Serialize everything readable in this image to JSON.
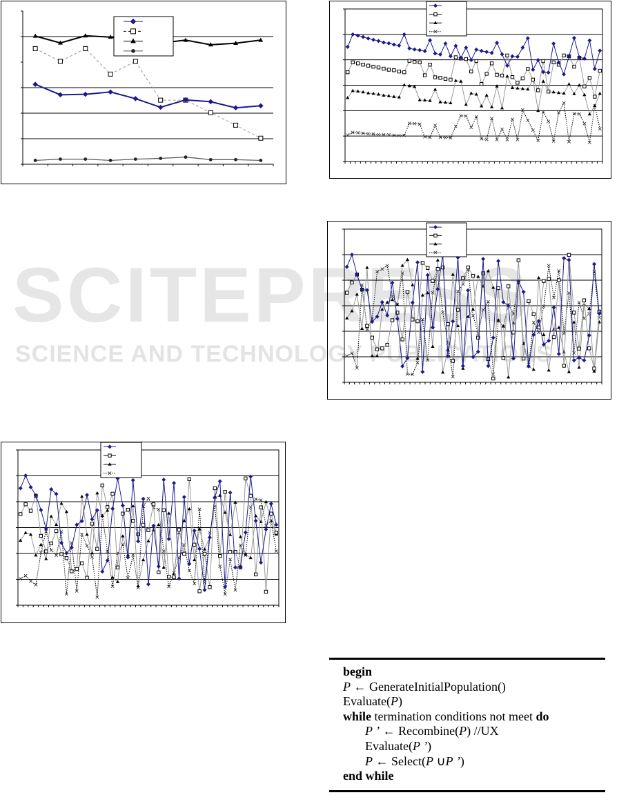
{
  "watermark": {
    "title": "SCITEPRESS",
    "subtitle": "SCIENCE AND TECHNOLOGY PUBLICATIONS"
  },
  "chart_data": [
    {
      "type": "line",
      "ylim": [
        0,
        6
      ],
      "gridlines": [
        1,
        2,
        3,
        5
      ],
      "grid": true,
      "legend": "top-center",
      "series": [
        {
          "marker": "diamond",
          "color": "#1a1a8c",
          "line": "solid-bold",
          "values": [
            3.13,
            2.72,
            2.74,
            2.83,
            2.57,
            2.23,
            2.52,
            2.45,
            2.21,
            2.29
          ]
        },
        {
          "marker": "square",
          "color": "#999999",
          "line": "dashed",
          "values": [
            4.53,
            4.03,
            4.53,
            3.53,
            4.03,
            2.51,
            2.51,
            2.02,
            1.53,
            1.02
          ]
        },
        {
          "marker": "triangle",
          "color": "#000000",
          "line": "solid-bold",
          "values": [
            5.02,
            4.75,
            5.03,
            4.98,
            4.8,
            4.75,
            4.86,
            4.68,
            4.74,
            4.86
          ]
        },
        {
          "marker": "dot",
          "color": "#555555",
          "line": "solid",
          "values": [
            0.15,
            0.2,
            0.2,
            0.15,
            0.2,
            0.23,
            0.28,
            0.18,
            0.18,
            0.15
          ]
        }
      ]
    },
    {
      "type": "line",
      "ylim": [
        0,
        6
      ],
      "gridlines": [
        1,
        2,
        3,
        4,
        5
      ],
      "grid": true,
      "legend": "top-center",
      "series": [
        {
          "marker": "diamond",
          "color": "#1a1a8c",
          "line": "solid",
          "values": [
            4.51,
            5.0,
            4.95,
            4.9,
            4.84,
            4.79,
            4.74,
            4.68,
            4.65,
            4.6,
            4.56,
            5.0,
            4.45,
            4.41,
            4.38,
            4.34,
            4.77,
            4.25,
            4.21,
            4.64,
            4.14,
            4.55,
            4.08,
            4.48,
            3.99,
            4.4,
            4.35,
            4.31,
            4.27,
            4.67,
            4.22,
            3.77,
            4.14,
            4.12,
            4.48,
            4.85,
            3.61,
            3.99,
            3.52,
            3.5,
            4.64,
            3.9,
            3.43,
            4.14,
            4.86,
            4.1,
            4.05,
            4.76,
            3.64,
            4.36
          ]
        },
        {
          "marker": "square",
          "color": "#999999",
          "line": "solid",
          "values": [
            3.51,
            3.9,
            3.86,
            3.81,
            3.77,
            3.73,
            3.7,
            3.65,
            3.61,
            3.59,
            3.54,
            3.51,
            3.96,
            3.92,
            3.9,
            3.39,
            3.81,
            3.31,
            3.29,
            3.25,
            3.22,
            4.1,
            4.05,
            4.03,
            3.54,
            3.95,
            3.05,
            3.45,
            3.86,
            3.41,
            3.38,
            4.17,
            3.32,
            3.1,
            3.27,
            3.64,
            3.22,
            2.8,
            3.95,
            2.75,
            3.9,
            3.81,
            4.17,
            4.14,
            3.73,
            4.08,
            2.95,
            3.29,
            2.55,
            3.57
          ]
        },
        {
          "marker": "triangle",
          "color": "#999999",
          "line": "solid",
          "values": [
            2.5,
            2.78,
            2.76,
            2.73,
            2.69,
            2.67,
            2.64,
            2.6,
            2.58,
            2.55,
            2.53,
            3.01,
            2.97,
            2.94,
            2.42,
            2.41,
            2.39,
            2.83,
            2.34,
            2.32,
            2.3,
            3.18,
            3.15,
            2.24,
            2.68,
            2.64,
            2.18,
            2.6,
            2.14,
            2.96,
            2.1,
            3.35,
            2.9,
            2.88,
            2.86,
            2.84,
            3.22,
            2.0,
            3.15,
            2.75,
            2.73,
            2.7,
            2.68,
            3.04,
            2.66,
            3.0,
            2.62,
            1.86,
            2.19,
            2.67
          ]
        },
        {
          "marker": "x",
          "color": "#000000",
          "line": "dotted",
          "values": [
            1.04,
            1.14,
            1.13,
            1.11,
            1.09,
            1.08,
            1.06,
            1.05,
            1.05,
            1.03,
            1.02,
            1.03,
            1.5,
            1.49,
            1.47,
            0.97,
            0.95,
            1.42,
            0.95,
            0.94,
            0.93,
            1.38,
            1.8,
            1.79,
            1.34,
            1.76,
            0.89,
            0.87,
            1.69,
            0.86,
            1.27,
            0.86,
            1.66,
            0.86,
            2.03,
            1.62,
            1.23,
            0.82,
            1.95,
            1.58,
            0.8,
            1.92,
            2.3,
            0.78,
            1.88,
            1.87,
            1.49,
            0.75,
            2.2,
            1.29
          ]
        }
      ]
    },
    {
      "type": "line",
      "ylim": [
        0,
        6
      ],
      "gridlines": [
        1,
        2,
        3,
        4,
        5
      ],
      "grid": true,
      "legend": "top-center",
      "series": [
        {
          "marker": "diamond",
          "color": "#1a1a8c",
          "line": "solid",
          "values": [
            4.52,
            5.0,
            4.22,
            3.63,
            3.61,
            2.37,
            2.57,
            3.14,
            2.62,
            3.9,
            2.49,
            0.63,
            0.95,
            3.12,
            4.7,
            0.41,
            4.2,
            2.15,
            3.65,
            5.0,
            1.02,
            2.39,
            4.89,
            0.64,
            3.6,
            0.99,
            1.2,
            4.83,
            0.64,
            1.75,
            4.75,
            3.14,
            3.0,
            0.93,
            3.96,
            3.54,
            0.63,
            1.86,
            2.4,
            1.48,
            1.63,
            2.93,
            1.11,
            4.86,
            4.79,
            0.86,
            0.97,
            0.86,
            1.84,
            4.63,
            2.69
          ]
        },
        {
          "marker": "square",
          "color": "#999999",
          "line": "solid",
          "values": [
            3.51,
            3.91,
            4.22,
            3.63,
            2.21,
            1.75,
            1.29,
            1.33,
            1.47,
            2.43,
            2.73,
            1.68,
            3.54,
            2.46,
            2.39,
            4.68,
            4.48,
            3.97,
            4.44,
            4.5,
            2.28,
            0.84,
            2.84,
            4.08,
            4.5,
            4.17,
            1.75,
            4.27,
            0.91,
            0.15,
            3.69,
            0.95,
            3.76,
            1.95,
            4.78,
            0.93,
            3.18,
            2.67,
            2.15,
            3.97,
            4.05,
            1.77,
            4.0,
            0.65,
            4.99,
            2.73,
            1.32,
            3.21,
            1.33,
            0.54,
            2.77
          ]
        },
        {
          "marker": "triangle",
          "color": "#999999",
          "line": "solid",
          "values": [
            2.51,
            2.79,
            3.44,
            2.1,
            4.49,
            1.03,
            1.03,
            2.85,
            3.13,
            3.23,
            3.04,
            4.57,
            4.8,
            3.81,
            0.93,
            3.41,
            3.5,
            1.4,
            4.78,
            0.39,
            1.27,
            4.22,
            2.21,
            0.54,
            2.57,
            2.85,
            4.14,
            3.76,
            4.36,
            3.71,
            2.43,
            2.2,
            0.2,
            2.32,
            3.9,
            1.51,
            0.63,
            0.5,
            4.09,
            1.86,
            0.47,
            2.07,
            2.14,
            1.18,
            0.41,
            2.35,
            0.58,
            3.05,
            2.88,
            0.43,
            2.36
          ]
        },
        {
          "marker": "x",
          "color": "#000000",
          "line": "dotted",
          "values": [
            1.03,
            1.14,
            0.56,
            3.81,
            2.07,
            2.48,
            4.33,
            4.44,
            4.57,
            3.36,
            3.05,
            4.28,
            0.32,
            0.31,
            0.77,
            2.46,
            0.87,
            3.51,
            4.44,
            2.74,
            1.54,
            0.22,
            3.56,
            3.84,
            4.41,
            2.61,
            1.92,
            2.84,
            3.16,
            0.32,
            2.41,
            2.19,
            3.05,
            2.68,
            3.89,
            1.53,
            0.7,
            2.35,
            1.95,
            2.97,
            4.57,
            3.32,
            4.37,
            1.91,
            3.5,
            1.15,
            3.13,
            2.5,
            2.69,
            4.33,
            2.53
          ]
        }
      ]
    },
    {
      "type": "line",
      "ylim": [
        0,
        6
      ],
      "gridlines": [
        1,
        2,
        3,
        4,
        5
      ],
      "grid": true,
      "legend": "top-center",
      "series": [
        {
          "marker": "diamond",
          "color": "#1a1a8c",
          "line": "solid",
          "values": [
            4.52,
            5.01,
            4.56,
            4.25,
            3.68,
            2.95,
            4.48,
            4.3,
            2.41,
            2.01,
            2.23,
            3.11,
            3.25,
            4.26,
            3.32,
            3.67,
            1.3,
            1.73,
            3.73,
            4.9,
            3.85,
            1.85,
            4.83,
            2.47,
            4.11,
            0.81,
            3.07,
            1.5,
            4.85,
            2.56,
            4.72,
            1.03,
            4.18,
            1.6,
            2.88,
            2.18,
            0.59,
            2.62,
            4.17,
            4.79,
            0.71,
            4.35,
            1.46,
            1.48,
            2.81,
            4.97,
            3.26,
            1.65,
            2.93,
            3.92,
            3.11
          ]
        },
        {
          "marker": "square",
          "color": "#999999",
          "line": "solid",
          "values": [
            3.52,
            3.9,
            3.65,
            4.23,
            2.68,
            2.08,
            2.39,
            2.87,
            1.97,
            1.82,
            1.31,
            1.4,
            1.62,
            1.06,
            3.15,
            2.18,
            4.63,
            3.79,
            4.31,
            1.46,
            3.54,
            3.69,
            3.26,
            2.74,
            3.11,
            2.9,
            3.9,
            1.27,
            3.67,
            1.1,
            1.08,
            2.92,
            1.99,
            4.87,
            2.34,
            0.54,
            1.99,
            0.7,
            4.52,
            1.9,
            4.38,
            2.06,
            2.06,
            1.46,
            4.9,
            4.23,
            1.19,
            3.78,
            0.52,
            3.54,
            2.8
          ]
        },
        {
          "marker": "triangle",
          "color": "#999999",
          "line": "solid",
          "values": [
            2.5,
            2.8,
            2.73,
            1.93,
            2.34,
            1.79,
            3.43,
            3.11,
            3.93,
            3.61,
            1.31,
            1.4,
            4.2,
            2.73,
            2.01,
            4.33,
            3.46,
            3.66,
            1.07,
            0.9,
            2.67,
            1.94,
            3.83,
            0.74,
            1.75,
            2.48,
            2.9,
            3.11,
            1.46,
            3.55,
            1.22,
            2.79,
            3.26,
            3.72,
            1.75,
            2.94,
            2.16,
            2.64,
            4.16,
            4.24,
            3.58,
            2.72,
            3.97,
            2.64,
            1.97,
            1.83,
            3.45,
            3.22,
            3.99,
            3.26,
            2.74
          ]
        },
        {
          "marker": "x",
          "color": "#000000",
          "line": "dotted",
          "values": [
            1.02,
            1.14,
            0.93,
            0.79,
            2.04,
            2.85,
            2.13,
            1.93,
            2.84,
            0.43,
            2.41,
            0.55,
            2.74,
            2.3,
            1.86,
            0.31,
            3.46,
            2.09,
            0.73,
            2.01,
            2.35,
            1.06,
            1.94,
            0.68,
            3.82,
            4.13,
            3.76,
            3.7,
            2.09,
            0.72,
            1.26,
            1.82,
            2.33,
            1.34,
            0.83,
            3.71,
            0.88,
            2.8,
            3.82,
            1.5,
            0.43,
            1.77,
            0.59,
            2.32,
            1.93,
            3.79,
            4.1,
            4.06,
            3.08,
            3.27,
            2.09
          ]
        }
      ]
    }
  ],
  "algorithm": {
    "lines": [
      [
        {
          "t": "begin",
          "s": "b"
        }
      ],
      [
        {
          "t": "P",
          "s": "i"
        },
        {
          "t": " ← GenerateInitialPopulation()",
          "s": ""
        }
      ],
      [
        {
          "t": "Evaluate(",
          "s": ""
        },
        {
          "t": "P",
          "s": "i"
        },
        {
          "t": ")",
          "s": ""
        }
      ],
      [
        {
          "t": "while",
          "s": "b"
        },
        {
          "t": " termination conditions not meet ",
          "s": ""
        },
        {
          "t": "do",
          "s": "b"
        }
      ],
      [
        {
          "t": "P ’",
          "s": "i"
        },
        {
          "t": " ← Recombine(",
          "s": ""
        },
        {
          "t": "P",
          "s": "i"
        },
        {
          "t": ")   //UX",
          "s": ""
        }
      ],
      [
        {
          "t": "Evaluate(",
          "s": ""
        },
        {
          "t": "P ’",
          "s": "i"
        },
        {
          "t": ")",
          "s": ""
        }
      ],
      [
        {
          "t": "P",
          "s": "i"
        },
        {
          "t": " ← Select(",
          "s": ""
        },
        {
          "t": "P",
          "s": "i"
        },
        {
          "t": " ∪",
          "s": ""
        },
        {
          "t": "P ’",
          "s": "i"
        },
        {
          "t": ")",
          "s": ""
        }
      ],
      [
        {
          "t": "end while",
          "s": "b"
        }
      ]
    ]
  }
}
